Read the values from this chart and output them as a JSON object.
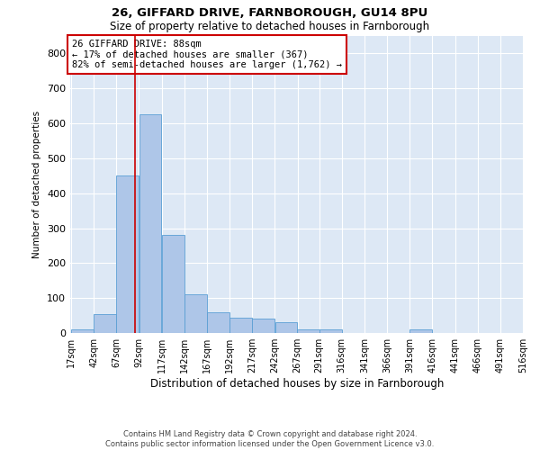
{
  "title1": "26, GIFFARD DRIVE, FARNBOROUGH, GU14 8PU",
  "title2": "Size of property relative to detached houses in Farnborough",
  "xlabel": "Distribution of detached houses by size in Farnborough",
  "ylabel": "Number of detached properties",
  "footnote": "Contains HM Land Registry data © Crown copyright and database right 2024.\nContains public sector information licensed under the Open Government Licence v3.0.",
  "property_line": 88,
  "annotation_text": "26 GIFFARD DRIVE: 88sqm\n← 17% of detached houses are smaller (367)\n82% of semi-detached houses are larger (1,762) →",
  "bin_edges": [
    17,
    42,
    67,
    92,
    117,
    142,
    167,
    192,
    217,
    242,
    267,
    291,
    316,
    341,
    366,
    391,
    416,
    441,
    466,
    491,
    516
  ],
  "bar_heights": [
    10,
    55,
    450,
    625,
    280,
    110,
    60,
    45,
    40,
    30,
    10,
    10,
    0,
    0,
    0,
    10,
    0,
    0,
    0,
    0
  ],
  "bar_color": "#aec6e8",
  "bar_edge_color": "#5a9fd4",
  "line_color": "#cc0000",
  "annotation_box_color": "#cc0000",
  "bg_color": "#dde8f5",
  "ylim": [
    0,
    850
  ],
  "yticks": [
    0,
    100,
    200,
    300,
    400,
    500,
    600,
    700,
    800
  ]
}
